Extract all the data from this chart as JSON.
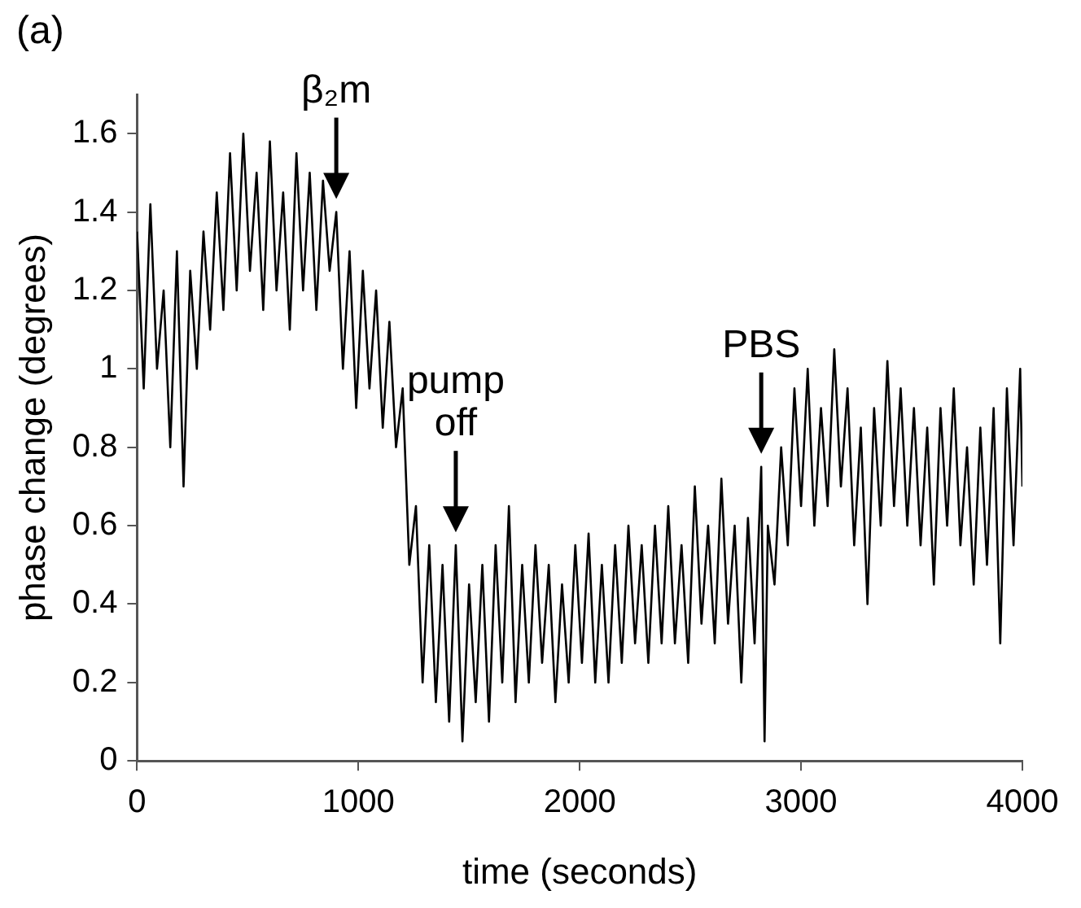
{
  "chart_data": {
    "type": "line",
    "xlabel": "time (seconds)",
    "ylabel": "phase change (degrees)",
    "xlim": [
      0,
      4000
    ],
    "xticks": [
      0,
      1000,
      2000,
      3000,
      4000
    ],
    "ylim": [
      0,
      1.7
    ],
    "yticks": [
      0,
      0.2,
      0.4,
      0.6,
      0.8,
      1,
      1.2,
      1.4,
      1.6
    ],
    "grid": false,
    "legend": false,
    "marker": "none",
    "line_style": "solid",
    "annotations": [
      "(a)",
      {
        "text": "β₂m",
        "x": 900,
        "y": 1.4
      },
      {
        "text": "pump\noff",
        "x": 1440,
        "y": 0.55
      },
      {
        "text": "PBS",
        "x": 2820,
        "y": 0.75
      }
    ],
    "series": [
      {
        "color": "#000000",
        "x": [
          0,
          30,
          60,
          90,
          120,
          150,
          180,
          210,
          240,
          270,
          300,
          330,
          360,
          390,
          420,
          450,
          480,
          510,
          540,
          570,
          600,
          630,
          660,
          690,
          720,
          750,
          780,
          810,
          840,
          870,
          900,
          930,
          960,
          990,
          1020,
          1050,
          1080,
          1110,
          1140,
          1170,
          1200,
          1230,
          1260,
          1290,
          1320,
          1350,
          1380,
          1410,
          1440,
          1470,
          1500,
          1530,
          1560,
          1590,
          1620,
          1650,
          1680,
          1710,
          1740,
          1770,
          1800,
          1830,
          1860,
          1890,
          1920,
          1950,
          1980,
          2010,
          2040,
          2070,
          2100,
          2130,
          2160,
          2190,
          2220,
          2250,
          2280,
          2310,
          2340,
          2370,
          2400,
          2430,
          2460,
          2490,
          2520,
          2550,
          2580,
          2610,
          2640,
          2670,
          2700,
          2730,
          2760,
          2790,
          2820,
          2835,
          2850,
          2880,
          2910,
          2940,
          2970,
          3000,
          3030,
          3060,
          3090,
          3120,
          3150,
          3180,
          3210,
          3240,
          3270,
          3300,
          3330,
          3360,
          3390,
          3420,
          3450,
          3480,
          3510,
          3540,
          3570,
          3600,
          3630,
          3660,
          3690,
          3720,
          3750,
          3780,
          3810,
          3840,
          3870,
          3900,
          3930,
          3960,
          3990,
          4000
        ],
        "values": [
          1.35,
          0.95,
          1.42,
          1.0,
          1.2,
          0.8,
          1.3,
          0.7,
          1.25,
          1.0,
          1.35,
          1.1,
          1.45,
          1.15,
          1.55,
          1.2,
          1.6,
          1.25,
          1.5,
          1.15,
          1.58,
          1.2,
          1.45,
          1.1,
          1.55,
          1.2,
          1.5,
          1.15,
          1.48,
          1.25,
          1.4,
          1.0,
          1.3,
          0.9,
          1.25,
          0.95,
          1.2,
          0.85,
          1.12,
          0.8,
          0.95,
          0.5,
          0.65,
          0.2,
          0.55,
          0.15,
          0.5,
          0.1,
          0.55,
          0.05,
          0.45,
          0.15,
          0.5,
          0.1,
          0.55,
          0.2,
          0.65,
          0.15,
          0.5,
          0.2,
          0.55,
          0.25,
          0.5,
          0.15,
          0.45,
          0.2,
          0.55,
          0.25,
          0.58,
          0.2,
          0.5,
          0.2,
          0.55,
          0.25,
          0.6,
          0.3,
          0.55,
          0.25,
          0.6,
          0.3,
          0.65,
          0.3,
          0.55,
          0.25,
          0.7,
          0.35,
          0.6,
          0.3,
          0.72,
          0.35,
          0.6,
          0.2,
          0.62,
          0.3,
          0.75,
          0.05,
          0.6,
          0.45,
          0.8,
          0.55,
          0.95,
          0.65,
          1.0,
          0.6,
          0.9,
          0.65,
          1.05,
          0.7,
          0.95,
          0.55,
          0.85,
          0.4,
          0.9,
          0.6,
          1.02,
          0.65,
          0.95,
          0.6,
          0.9,
          0.55,
          0.85,
          0.45,
          0.9,
          0.6,
          0.95,
          0.55,
          0.8,
          0.45,
          0.85,
          0.5,
          0.9,
          0.3,
          0.95,
          0.55,
          1.0,
          0.7
        ]
      }
    ]
  }
}
